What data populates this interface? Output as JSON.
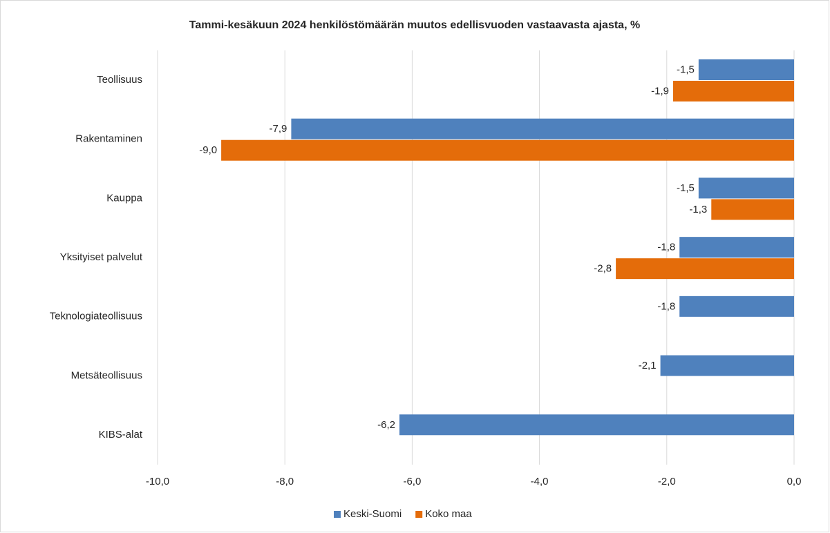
{
  "chart_data": {
    "type": "hbar",
    "title": "Tammi-kesäkuun 2024 henkilöstömäärän muutos edellisvuoden vastaavasta ajasta, %",
    "categories": [
      "Teollisuus",
      "Rakentaminen",
      "Kauppa",
      "Yksityiset palvelut",
      "Teknologiateollisuus",
      "Metsäteollisuus",
      "KIBS-alat"
    ],
    "series": [
      {
        "name": "Keski-Suomi",
        "color": "#4f81bd",
        "values": [
          -1.5,
          -7.9,
          -1.5,
          -1.8,
          -1.8,
          -2.1,
          -6.2
        ],
        "value_labels": [
          "-1,5",
          "-7,9",
          "-1,5",
          "-1,8",
          "-1,8",
          "-2,1",
          "-6,2"
        ]
      },
      {
        "name": "Koko maa",
        "color": "#e46c0a",
        "values": [
          -1.9,
          -9.0,
          -1.3,
          -2.8,
          null,
          null,
          null
        ],
        "value_labels": [
          "-1,9",
          "-9,0",
          "-1,3",
          "-2,8",
          null,
          null,
          null
        ]
      }
    ],
    "xlim": [
      -10,
      0
    ],
    "xticks": [
      {
        "value": -10,
        "label": "-10,0"
      },
      {
        "value": -8,
        "label": "-8,0"
      },
      {
        "value": -6,
        "label": "-6,0"
      },
      {
        "value": -4,
        "label": "-4,0"
      },
      {
        "value": -2,
        "label": "-2,0"
      },
      {
        "value": 0,
        "label": "0,0"
      }
    ],
    "grid": true,
    "legend": "bottom"
  }
}
